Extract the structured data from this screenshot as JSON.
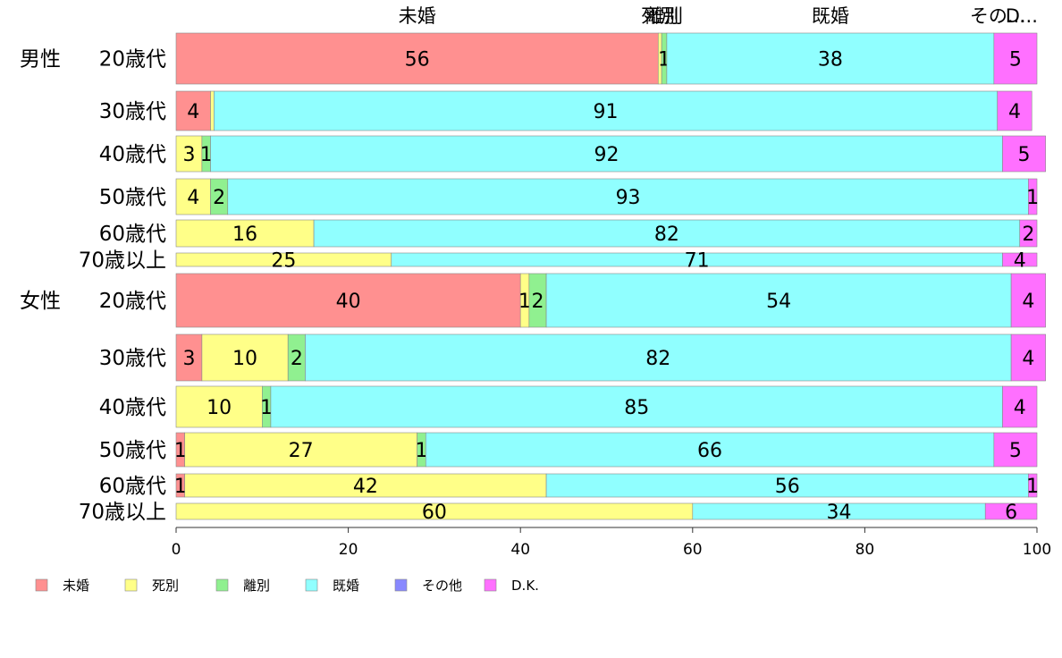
{
  "chart_data": {
    "type": "bar",
    "orientation": "horizontal",
    "stacked": "100%",
    "xlim": [
      0,
      100
    ],
    "xticks": [
      0,
      20,
      40,
      60,
      80,
      100
    ],
    "grid": false,
    "legend_position": "bottom",
    "categories_top_labels": [
      "未婚",
      "死別",
      "離別",
      "既婚",
      "その他",
      "D.K."
    ],
    "series": [
      {
        "name": "未婚",
        "color": "#ff9090"
      },
      {
        "name": "死別",
        "color": "#ffff88"
      },
      {
        "name": "離別",
        "color": "#90f090"
      },
      {
        "name": "既婚",
        "color": "#90ffff"
      },
      {
        "name": "その他",
        "color": "#8888ff"
      },
      {
        "name": "D.K.",
        "color": "#ff70ff"
      }
    ],
    "rows": [
      {
        "group": "男性",
        "label": "20歳代",
        "values": [
          56,
          0.4,
          0.6,
          38,
          0,
          5
        ]
      },
      {
        "group": "",
        "label": "30歳代",
        "values": [
          4,
          0.4,
          0,
          91,
          0,
          4
        ]
      },
      {
        "group": "",
        "label": "40歳代",
        "values": [
          0,
          3,
          1,
          92,
          0,
          5
        ]
      },
      {
        "group": "",
        "label": "50歳代",
        "values": [
          0,
          4,
          2,
          93,
          0,
          1
        ]
      },
      {
        "group": "",
        "label": "60歳代",
        "values": [
          0,
          16,
          0,
          82,
          0,
          2
        ]
      },
      {
        "group": "",
        "label": "70歳以上",
        "values": [
          0,
          25,
          0,
          71,
          0,
          4
        ]
      },
      {
        "group": "女性",
        "label": "20歳代",
        "values": [
          40,
          1,
          2,
          54,
          0,
          4
        ]
      },
      {
        "group": "",
        "label": "30歳代",
        "values": [
          3,
          10,
          2,
          82,
          0,
          4
        ]
      },
      {
        "group": "",
        "label": "40歳代",
        "values": [
          0,
          10,
          1,
          85,
          0,
          4
        ]
      },
      {
        "group": "",
        "label": "50歳代",
        "values": [
          1,
          27,
          1,
          66,
          0,
          5
        ]
      },
      {
        "group": "",
        "label": "60歳代",
        "values": [
          1,
          42,
          0,
          56,
          0,
          1
        ]
      },
      {
        "group": "",
        "label": "70歳以上",
        "values": [
          0,
          60,
          0,
          34,
          0,
          6
        ]
      }
    ],
    "data_labels": [
      [
        "56",
        "",
        "1",
        "38",
        "",
        "5"
      ],
      [
        "4",
        "",
        "",
        "91",
        "",
        "4"
      ],
      [
        "",
        "3",
        "1",
        "92",
        "",
        "5"
      ],
      [
        "",
        "4",
        "2",
        "93",
        "",
        "1"
      ],
      [
        "",
        "16",
        "",
        "82",
        "",
        "2"
      ],
      [
        "",
        "25",
        "",
        "71",
        "",
        "4"
      ],
      [
        "40",
        "1",
        "2",
        "54",
        "",
        "4"
      ],
      [
        "3",
        "10",
        "2",
        "82",
        "",
        "4"
      ],
      [
        "",
        "10",
        "1",
        "85",
        "",
        "4"
      ],
      [
        "1",
        "27",
        "1",
        "66",
        "",
        "5"
      ],
      [
        "1",
        "42",
        "",
        "56",
        "",
        "1"
      ],
      [
        "",
        "60",
        "",
        "34",
        "",
        "6"
      ]
    ],
    "top_label_texts": [
      "未婚",
      "死別",
      "離別",
      "既婚",
      "その...",
      "D..."
    ],
    "legend": [
      "未婚",
      "死別",
      "離別",
      "既婚",
      "その他",
      "D.K."
    ]
  }
}
